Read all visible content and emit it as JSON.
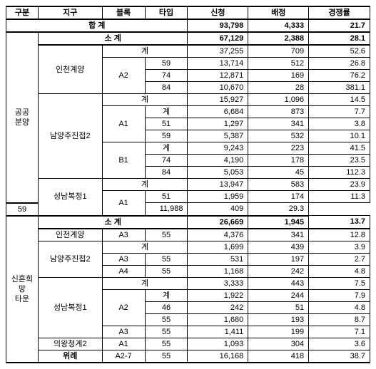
{
  "headers": [
    "구분",
    "지구",
    "블록",
    "타입",
    "신청",
    "배정",
    "경쟁률"
  ],
  "total": {
    "label": "합  계",
    "app": "93,798",
    "alloc": "4,333",
    "rate": "21.7"
  },
  "section1": {
    "label": "공공\n분양",
    "subtotal": {
      "label": "소  계",
      "app": "67,129",
      "alloc": "2,388",
      "rate": "28.1"
    },
    "g1": {
      "area": "인천계양",
      "gye": {
        "label": "계",
        "app": "37,255",
        "alloc": "709",
        "rate": "52.6"
      },
      "block": "A2",
      "rows": [
        {
          "type": "59",
          "app": "13,714",
          "alloc": "512",
          "rate": "26.8"
        },
        {
          "type": "74",
          "app": "12,871",
          "alloc": "169",
          "rate": "76.2"
        },
        {
          "type": "84",
          "app": "10,670",
          "alloc": "28",
          "rate": "381.1"
        }
      ]
    },
    "g2": {
      "area": "남양주진접2",
      "gye": {
        "label": "계",
        "app": "15,927",
        "alloc": "1,096",
        "rate": "14.5"
      },
      "b1": {
        "block": "A1",
        "bgye": {
          "label": "계",
          "app": "6,684",
          "alloc": "873",
          "rate": "7.7"
        },
        "rows": [
          {
            "type": "51",
            "app": "1,297",
            "alloc": "341",
            "rate": "3.8"
          },
          {
            "type": "59",
            "app": "5,387",
            "alloc": "532",
            "rate": "10.1"
          }
        ]
      },
      "b2": {
        "block": "B1",
        "bgye": {
          "label": "계",
          "app": "9,243",
          "alloc": "223",
          "rate": "41.5"
        },
        "rows": [
          {
            "type": "74",
            "app": "4,190",
            "alloc": "178",
            "rate": "23.5"
          },
          {
            "type": "84",
            "app": "5,053",
            "alloc": "45",
            "rate": "112.3"
          }
        ]
      }
    },
    "g3": {
      "area": "성남복정1",
      "gye": {
        "label": "계",
        "app": "13,947",
        "alloc": "583",
        "rate": "23.9"
      },
      "block": "A1",
      "rows": [
        {
          "type": "51",
          "app": "1,959",
          "alloc": "174",
          "rate": "11.3"
        },
        {
          "type": "59",
          "app": "11,988",
          "alloc": "409",
          "rate": "29.3"
        }
      ]
    }
  },
  "section2": {
    "label": "신혼희망\n타운",
    "subtotal": {
      "label": "소  계",
      "app": "26,669",
      "alloc": "1,945",
      "rate": "13.7"
    },
    "g1": {
      "area": "인천계양",
      "block": "A3",
      "type": "55",
      "app": "4,376",
      "alloc": "341",
      "rate": "12.8"
    },
    "g2": {
      "area": "남양주진접2",
      "gye": {
        "label": "계",
        "app": "1,699",
        "alloc": "439",
        "rate": "3.9"
      },
      "rows": [
        {
          "block": "A3",
          "type": "55",
          "app": "531",
          "alloc": "197",
          "rate": "2.7"
        },
        {
          "block": "A4",
          "type": "55",
          "app": "1,168",
          "alloc": "242",
          "rate": "4.8"
        }
      ]
    },
    "g3": {
      "area": "성남복정1",
      "gye": {
        "label": "계",
        "app": "3,333",
        "alloc": "443",
        "rate": "7.5"
      },
      "b1": {
        "block": "A2",
        "bgye": {
          "label": "계",
          "app": "1,922",
          "alloc": "244",
          "rate": "7.9"
        },
        "rows": [
          {
            "type": "46",
            "app": "242",
            "alloc": "51",
            "rate": "4.8"
          },
          {
            "type": "55",
            "app": "1,680",
            "alloc": "193",
            "rate": "8.7"
          }
        ]
      },
      "b2": {
        "block": "A3",
        "type": "55",
        "app": "1,411",
        "alloc": "199",
        "rate": "7.1"
      }
    },
    "g4": {
      "area": "의왕청계2",
      "block": "A1",
      "type": "55",
      "app": "1,093",
      "alloc": "304",
      "rate": "3.6"
    },
    "g5": {
      "area": "위례",
      "block": "A2-7",
      "type": "55",
      "app": "16,168",
      "alloc": "418",
      "rate": "38.7"
    }
  }
}
